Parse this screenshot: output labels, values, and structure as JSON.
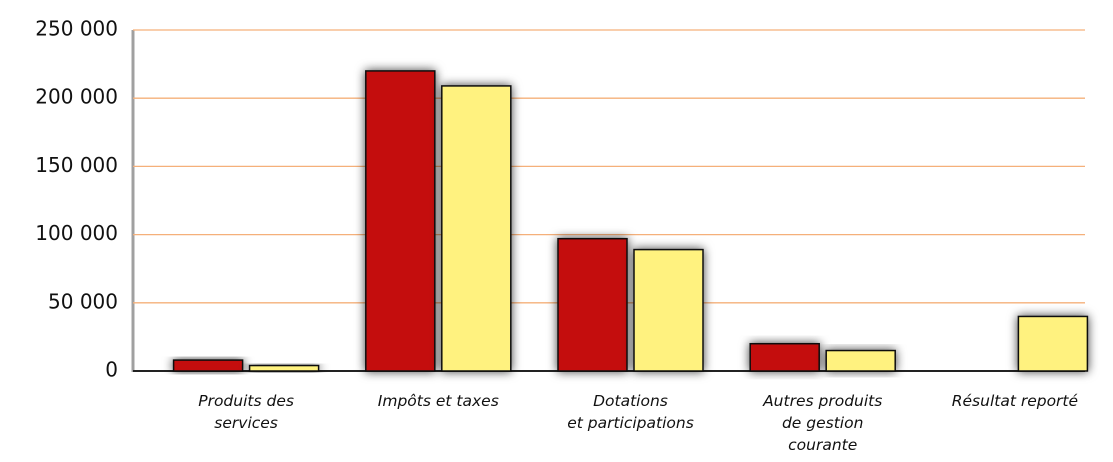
{
  "chart_data": {
    "type": "bar",
    "categories": [
      "Produits des\nservices",
      "Impôts et taxes",
      "Dotations\net participations",
      "Autres produits\nde gestion\ncourante",
      "Résultat reporté"
    ],
    "series": [
      {
        "color": "#c40c0f",
        "values": [
          8000,
          220000,
          97000,
          20000,
          null
        ]
      },
      {
        "color": "#fff27f",
        "values": [
          4000,
          209000,
          89000,
          15000,
          40000
        ]
      }
    ],
    "ylim": [
      0,
      250000
    ],
    "yticks": [
      0,
      {
        "value": 50000,
        "label": "50 000"
      },
      {
        "value": 100000,
        "label": "100 000"
      },
      {
        "value": 150000,
        "label": "150 000"
      },
      {
        "value": 200000,
        "label": "200 000"
      },
      {
        "value": 250000,
        "label": "250 000"
      }
    ],
    "grid": true,
    "grid_color": "#f5b07a"
  }
}
